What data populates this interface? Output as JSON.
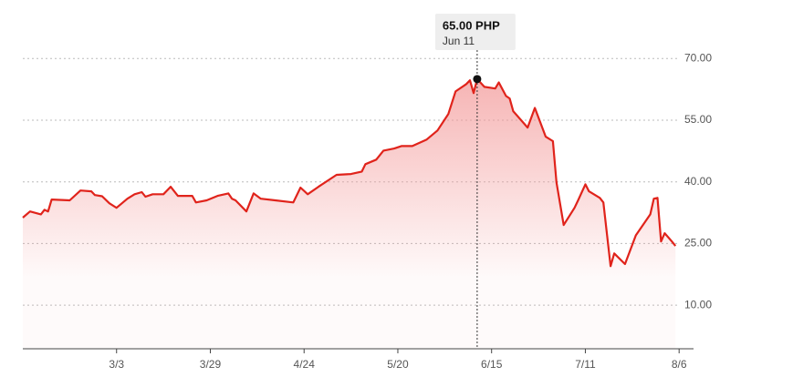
{
  "chart_data": {
    "type": "line",
    "x": [
      "2/5",
      "2/7",
      "2/10",
      "2/11",
      "2/12",
      "2/13",
      "2/18",
      "2/21",
      "2/24",
      "2/25",
      "2/27",
      "3/1",
      "3/3",
      "3/6",
      "3/8",
      "3/10",
      "3/11",
      "3/13",
      "3/16",
      "3/18",
      "3/20",
      "3/24",
      "3/25",
      "3/28",
      "3/31",
      "4/3",
      "4/4",
      "4/5",
      "4/8",
      "4/10",
      "4/12",
      "4/16",
      "4/21",
      "4/23",
      "4/25",
      "4/28",
      "5/3",
      "5/7",
      "5/10",
      "5/11",
      "5/14",
      "5/16",
      "5/19",
      "5/21",
      "5/24",
      "5/28",
      "5/31",
      "6/3",
      "6/5",
      "6/8",
      "6/9",
      "6/10",
      "6/11",
      "6/13",
      "6/16",
      "6/17",
      "6/19",
      "6/20",
      "6/21",
      "6/25",
      "6/27",
      "6/30",
      "7/2",
      "7/3",
      "7/5",
      "7/8",
      "7/9",
      "7/11",
      "7/12",
      "7/15",
      "7/16",
      "7/18",
      "7/19",
      "7/22",
      "7/25",
      "7/29",
      "7/30",
      "7/31",
      "8/1",
      "8/2",
      "8/4",
      "8/5"
    ],
    "series": [
      {
        "color": "#e0231b",
        "values": [
          31.3,
          32.8,
          32.1,
          33.2,
          32.8,
          35.7,
          35.5,
          37.9,
          37.7,
          36.8,
          36.5,
          34.8,
          33.7,
          35.9,
          37.0,
          37.5,
          36.4,
          37.0,
          37.0,
          38.8,
          36.6,
          36.6,
          35.0,
          35.5,
          36.6,
          37.2,
          35.9,
          35.5,
          32.8,
          37.2,
          35.9,
          35.5,
          35.0,
          38.6,
          37.0,
          38.8,
          41.7,
          41.9,
          42.5,
          44.3,
          45.4,
          47.6,
          48.1,
          48.7,
          48.7,
          50.3,
          52.5,
          56.5,
          62.0,
          63.8,
          64.7,
          61.6,
          65.0,
          63.1,
          62.7,
          64.2,
          60.9,
          60.3,
          57.2,
          53.2,
          58.0,
          51.0,
          49.9,
          39.9,
          29.5,
          33.7,
          35.5,
          39.4,
          37.7,
          36.1,
          35.0,
          19.5,
          22.6,
          20.0,
          27.0,
          32.1,
          35.9,
          36.1,
          25.5,
          27.5,
          25.5,
          24.4
        ]
      }
    ],
    "xlim": [
      "2/5",
      "8/10"
    ],
    "xticks": [
      "3/3",
      "3/29",
      "4/24",
      "5/20",
      "6/15",
      "7/11",
      "8/6"
    ],
    "ylim": [
      -0.6,
      78.7
    ],
    "yticks": [
      {
        "value": 10,
        "label": "10.00"
      },
      {
        "value": 25,
        "label": "25.00"
      },
      {
        "value": 40,
        "label": "40.00"
      },
      {
        "value": 55,
        "label": "55.00"
      },
      {
        "value": 70,
        "label": "70.00"
      }
    ],
    "grid": true,
    "tooltip": {
      "value": 65.0,
      "label": "65.00 PHP",
      "date": "Jun 11"
    }
  }
}
